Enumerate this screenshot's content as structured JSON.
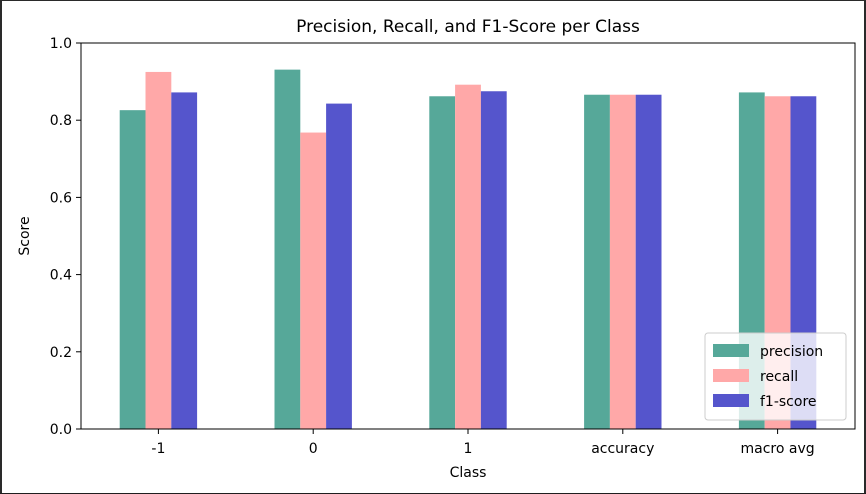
{
  "chart_data": {
    "type": "bar",
    "title": "Precision, Recall, and F1-Score per Class",
    "xlabel": "Class",
    "ylabel": "Score",
    "ylim": [
      0,
      1.0
    ],
    "yticks": [
      "0.0",
      "0.2",
      "0.4",
      "0.6",
      "0.8",
      "1.0"
    ],
    "categories": [
      "-1",
      "0",
      "1",
      "accuracy",
      "macro avg"
    ],
    "series": [
      {
        "name": "precision",
        "color": "#56a899",
        "values": [
          0.826,
          0.931,
          0.862,
          0.866,
          0.872
        ]
      },
      {
        "name": "recall",
        "color": "#ffa8a8",
        "values": [
          0.925,
          0.768,
          0.892,
          0.866,
          0.862
        ]
      },
      {
        "name": "f1-score",
        "color": "#5555cc",
        "values": [
          0.872,
          0.843,
          0.875,
          0.866,
          0.862
        ]
      }
    ],
    "grid": false,
    "legend_position": "lower right"
  }
}
